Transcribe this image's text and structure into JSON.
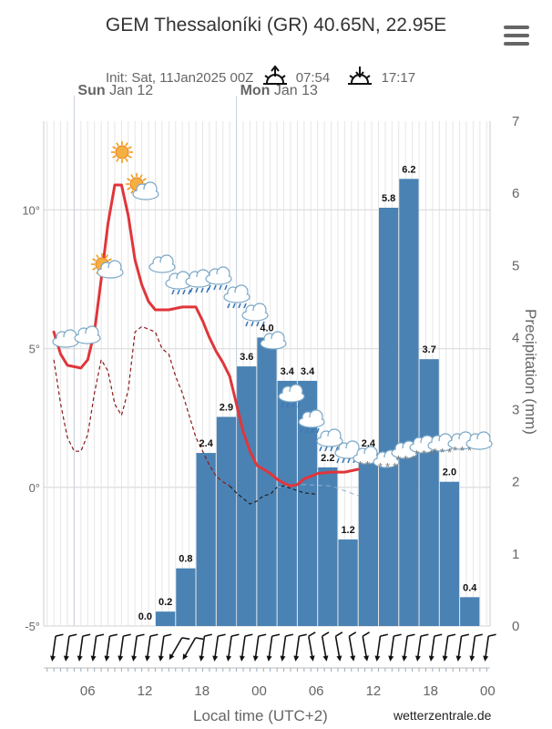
{
  "header": {
    "title": "GEM Thessaloníki (GR) 40.65N, 22.95E",
    "init": "Init: Sat, 11Jan2025 00Z",
    "sunrise": "07:54",
    "sunset": "17:17",
    "menu_icon": "hamburger-menu-icon"
  },
  "footer": {
    "xlabel": "Local time (UTC+2)",
    "credit": "wetterzentrale.de"
  },
  "colors": {
    "bars": "#4a82b4",
    "temperature": "#e0363a",
    "dewpoint": "#8b1a1a",
    "grid": "#e6e6e6"
  },
  "chart_data": {
    "type": "bar",
    "title": "GEM Thessaloníki (GR) 40.65N, 22.95E",
    "xlabel": "Local time (UTC+2)",
    "ylabel_right": "Precipitation (mm)",
    "day_labels": [
      {
        "day": "Sun",
        "date": "Jan 12",
        "x": 6
      },
      {
        "day": "Mon",
        "date": "Jan 13",
        "x": 30
      }
    ],
    "x_ticks": [
      {
        "x": 6,
        "label": "06"
      },
      {
        "x": 12,
        "label": "12"
      },
      {
        "x": 18,
        "label": "18"
      },
      {
        "x": 24,
        "label": "00"
      },
      {
        "x": 30,
        "label": "06"
      },
      {
        "x": 36,
        "label": "12"
      },
      {
        "x": 42,
        "label": "18"
      },
      {
        "x": 48,
        "label": "00"
      }
    ],
    "xlim": [
      1.5,
      48.5
    ],
    "left_axis": {
      "ticks": [
        -5,
        0,
        5,
        10
      ],
      "labels": [
        "-5°",
        "0°",
        "5°",
        "10°"
      ],
      "lim": [
        -5,
        13.2
      ]
    },
    "right_axis": {
      "ticks": [
        0,
        1,
        2,
        3,
        4,
        5,
        6,
        7
      ],
      "lim": [
        0,
        7
      ]
    },
    "precipitation": [
      {
        "x": 18,
        "value": 0.0,
        "label": "0.0"
      },
      {
        "x": 21,
        "value": 0.2,
        "label": "0.2"
      },
      {
        "x": 24,
        "value": 0.8,
        "label": "0.8"
      },
      {
        "x": 27,
        "value": 2.4,
        "label": "2.4"
      },
      {
        "x": 30,
        "value": 2.9,
        "label": "2.9"
      },
      {
        "x": 33,
        "value": 3.6,
        "label": "3.6"
      },
      {
        "x": 36,
        "value": 4.0,
        "label": "4.0"
      },
      {
        "x": 39,
        "value": 3.4,
        "label": "3.4"
      },
      {
        "x": 42,
        "value": 3.4,
        "label": "3.4"
      },
      {
        "x": 45,
        "value": 2.2,
        "label": "2.2"
      },
      {
        "x": 48,
        "value": 1.2,
        "label": "1.2"
      },
      {
        "x": 51,
        "value": 2.4,
        "label": "2.4"
      },
      {
        "x": 54,
        "value": 5.8,
        "label": "5.8"
      },
      {
        "x": 57,
        "value": 6.2,
        "label": "6.2"
      },
      {
        "x": 60,
        "value": 3.7,
        "label": "3.7"
      },
      {
        "x": 63,
        "value": 2.0,
        "label": "2.0"
      },
      {
        "x": 66,
        "value": 0.4,
        "label": "0.4"
      }
    ],
    "temperature": [
      [
        3,
        5.6
      ],
      [
        4,
        4.8
      ],
      [
        5,
        4.4
      ],
      [
        7,
        4.3
      ],
      [
        8,
        4.6
      ],
      [
        9,
        5.6
      ],
      [
        10,
        7.5
      ],
      [
        11,
        9.5
      ],
      [
        12,
        10.9
      ],
      [
        13,
        10.9
      ],
      [
        14,
        9.8
      ],
      [
        15,
        8.2
      ],
      [
        16,
        7.3
      ],
      [
        17,
        6.7
      ],
      [
        18,
        6.4
      ],
      [
        20,
        6.4
      ],
      [
        22,
        6.5
      ],
      [
        24,
        6.5
      ],
      [
        25,
        6.0
      ],
      [
        26,
        5.4
      ],
      [
        27,
        4.9
      ],
      [
        28,
        4.5
      ],
      [
        29,
        4.0
      ],
      [
        30,
        3.0
      ],
      [
        31,
        2.0
      ],
      [
        32,
        1.3
      ],
      [
        33,
        0.8
      ],
      [
        35,
        0.5
      ],
      [
        36,
        0.3
      ],
      [
        37,
        0.15
      ],
      [
        38,
        0.05
      ],
      [
        39,
        0.1
      ],
      [
        40,
        0.3
      ],
      [
        42,
        0.5
      ],
      [
        44,
        0.55
      ],
      [
        46,
        0.55
      ],
      [
        48,
        0.65
      ]
    ],
    "dewpoint": [
      [
        3,
        4.6
      ],
      [
        4,
        3.0
      ],
      [
        5,
        1.8
      ],
      [
        6,
        1.3
      ],
      [
        7,
        1.3
      ],
      [
        8,
        1.9
      ],
      [
        9,
        3.4
      ],
      [
        10,
        4.6
      ],
      [
        11,
        4.2
      ],
      [
        12,
        3.0
      ],
      [
        13,
        2.6
      ],
      [
        14,
        3.5
      ],
      [
        15,
        5.6
      ],
      [
        16,
        5.8
      ],
      [
        18,
        5.6
      ],
      [
        19,
        5.0
      ],
      [
        20,
        4.8
      ],
      [
        21,
        4.0
      ],
      [
        22,
        3.4
      ],
      [
        23,
        2.6
      ],
      [
        24,
        1.8
      ],
      [
        25,
        1.3
      ],
      [
        26,
        0.8
      ],
      [
        27,
        0.4
      ],
      [
        28,
        0.2
      ],
      [
        29,
        0.05
      ]
    ],
    "dewpoint_tail": [
      [
        29,
        0.05
      ],
      [
        30,
        -0.2
      ],
      [
        31,
        -0.4
      ],
      [
        32,
        -0.6
      ],
      [
        33,
        -0.5
      ],
      [
        34,
        -0.3
      ],
      [
        35,
        -0.25
      ],
      [
        36,
        0.0
      ],
      [
        37,
        0.05
      ],
      [
        40,
        -0.2
      ],
      [
        42,
        -0.25
      ]
    ],
    "dewpoint_dash_tail": [
      [
        36,
        0.0
      ],
      [
        40,
        0.1
      ],
      [
        44,
        0.05
      ],
      [
        48,
        -0.3
      ]
    ]
  }
}
